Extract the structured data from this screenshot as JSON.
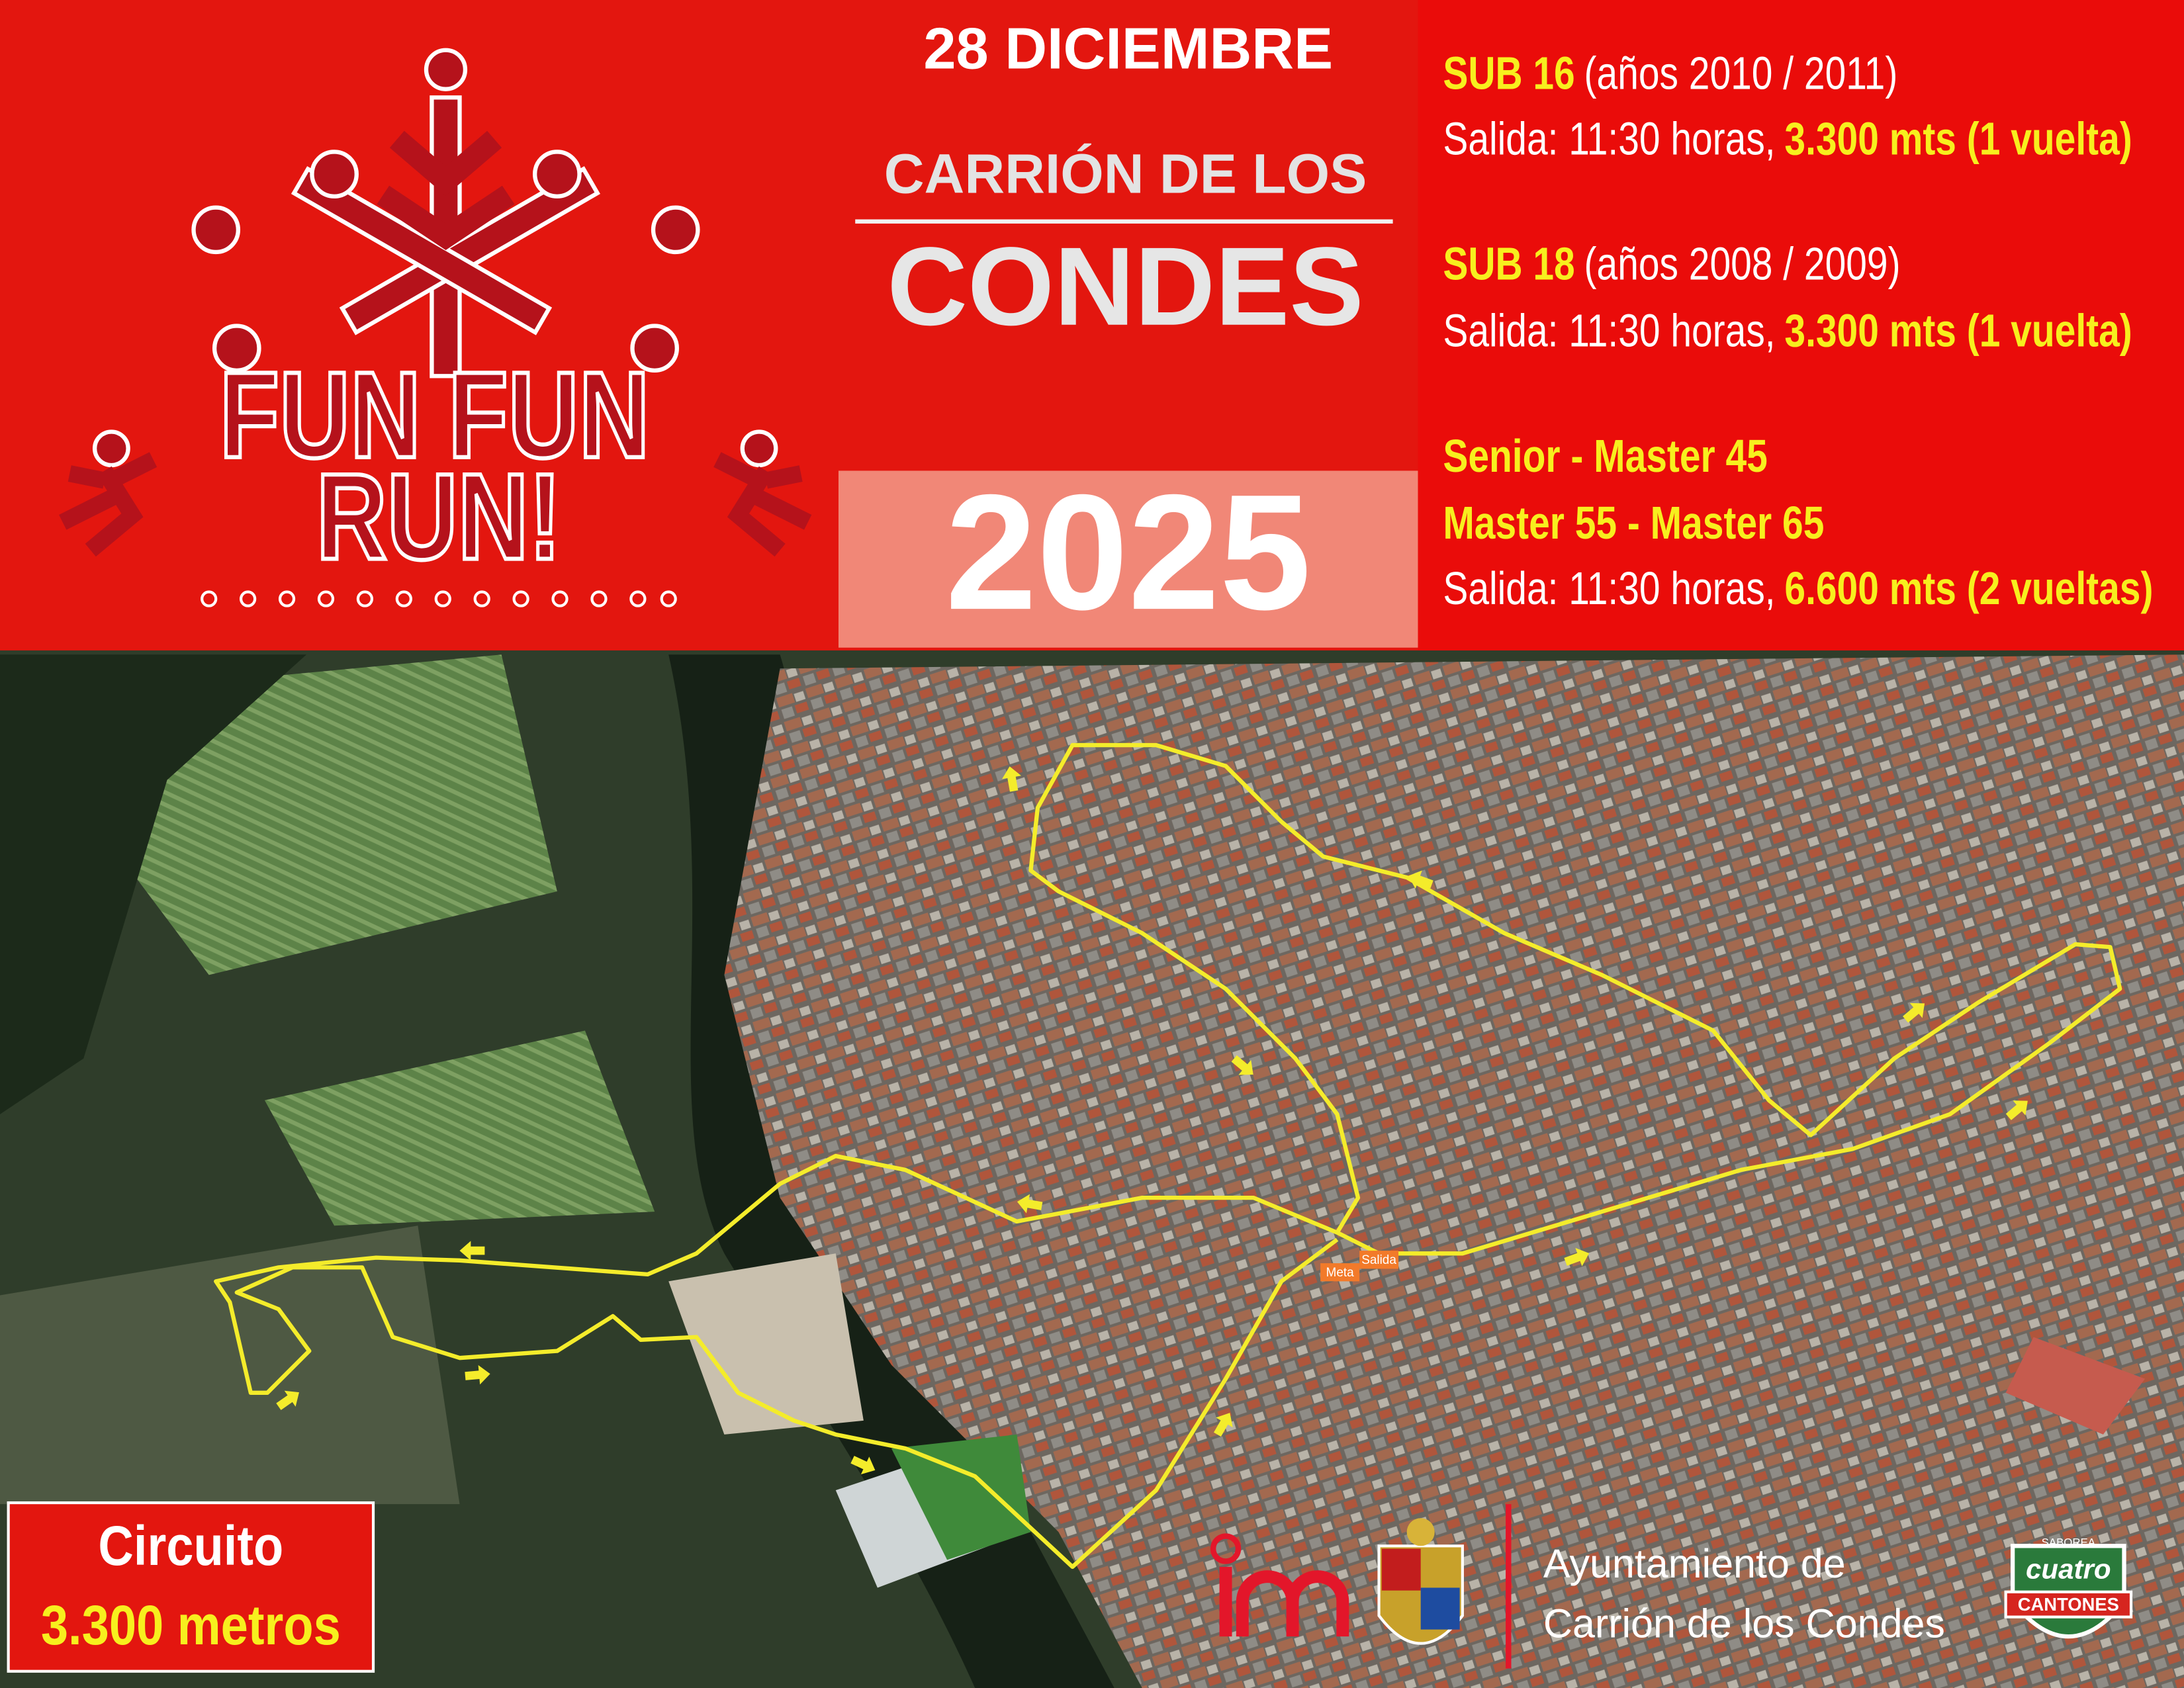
{
  "logo": {
    "line1": "FUN FUN",
    "line2": "RUN!"
  },
  "header": {
    "date": "28 DICIEMBRE",
    "town_line1": "CARRIÓN DE LOS",
    "town_line2": "CONDES",
    "year": "2025"
  },
  "categories": [
    {
      "names": [
        "SUB 16"
      ],
      "years": "(años 2010 / 2011)",
      "start": "Salida: 11:30 horas,",
      "distance": "3.300 mts (1 vuelta)"
    },
    {
      "names": [
        "SUB 18"
      ],
      "years": "(años 2008 / 2009)",
      "start": "Salida: 11:30 horas,",
      "distance": "3.300 mts (1 vuelta)"
    },
    {
      "names": [
        "Senior - Master 45",
        "Master 55 - Master 65"
      ],
      "start": "Salida: 11:30 horas,",
      "distance": "6.600 mts (2 vueltas)"
    }
  ],
  "map": {
    "finish": "Meta",
    "start": "Salida"
  },
  "circuit": {
    "label": "Circuito",
    "length": "3.300 metros"
  },
  "sponsors": {
    "council_line1": "Ayuntamiento de",
    "council_line2": "Carrión de los Condes",
    "brand_top": "SABOREA",
    "brand_name": "cuatro",
    "brand_sub": "CANTONES"
  }
}
